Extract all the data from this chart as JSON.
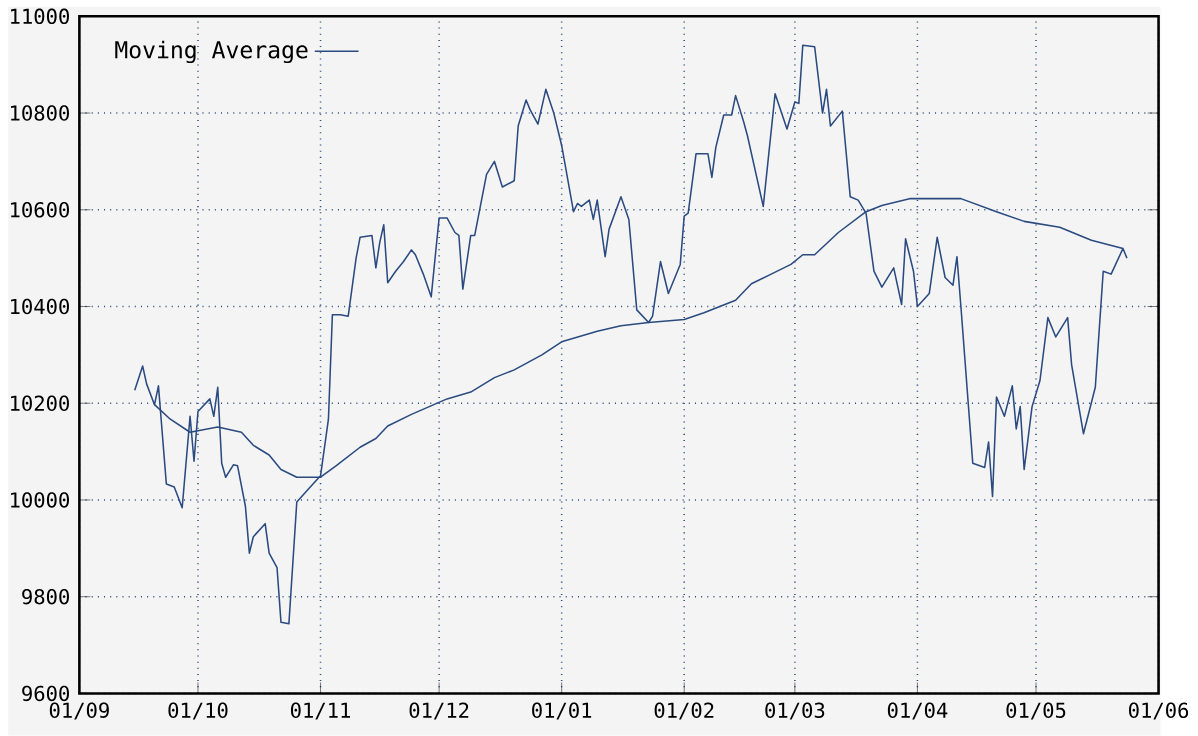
{
  "chart_data": {
    "type": "line",
    "xlim": [
      "2004-09-01",
      "2005-06-01"
    ],
    "xticks": [
      {
        "value": "2004-09-01",
        "label": "01/09"
      },
      {
        "value": "2004-10-01",
        "label": "01/10"
      },
      {
        "value": "2004-11-01",
        "label": "01/11"
      },
      {
        "value": "2004-12-01",
        "label": "01/12"
      },
      {
        "value": "2005-01-01",
        "label": "01/01"
      },
      {
        "value": "2005-02-01",
        "label": "01/02"
      },
      {
        "value": "2005-03-01",
        "label": "01/03"
      },
      {
        "value": "2005-04-01",
        "label": "01/04"
      },
      {
        "value": "2005-05-01",
        "label": "01/05"
      },
      {
        "value": "2005-06-01",
        "label": "01/06"
      }
    ],
    "ylim": [
      9600,
      11000
    ],
    "yticks": [
      9600,
      9800,
      10000,
      10200,
      10400,
      10600,
      10800,
      11000
    ],
    "grid": true,
    "legend": "top left",
    "marker": "none",
    "line_style": "solid",
    "series": [
      {
        "color": "#2a4a80",
        "x": [
          "2004-09-15",
          "2004-09-17",
          "2004-09-18",
          "2004-09-20",
          "2004-09-21",
          "2004-09-23",
          "2004-09-25",
          "2004-09-27",
          "2004-09-29",
          "2004-09-30",
          "2004-10-01",
          "2004-10-04",
          "2004-10-05",
          "2004-10-06",
          "2004-10-07",
          "2004-10-08",
          "2004-10-10",
          "2004-10-11",
          "2004-10-13",
          "2004-10-14",
          "2004-10-15",
          "2004-10-18",
          "2004-10-19",
          "2004-10-21",
          "2004-10-22",
          "2004-10-24",
          "2004-10-26",
          "2004-10-29",
          "2004-11-01",
          "2004-11-03",
          "2004-11-04",
          "2004-11-06",
          "2004-11-08",
          "2004-11-10",
          "2004-11-11",
          "2004-11-14",
          "2004-11-15",
          "2004-11-16",
          "2004-11-17",
          "2004-11-18",
          "2004-11-20",
          "2004-11-22",
          "2004-11-24",
          "2004-11-25",
          "2004-11-27",
          "2004-11-29",
          "2004-12-01",
          "2004-12-03",
          "2004-12-05",
          "2004-12-06",
          "2004-12-07",
          "2004-12-09",
          "2004-12-10",
          "2004-12-13",
          "2004-12-15",
          "2004-12-17",
          "2004-12-20",
          "2004-12-21",
          "2004-12-23",
          "2004-12-24",
          "2004-12-26",
          "2004-12-28",
          "2004-12-30",
          "2005-01-01",
          "2005-01-04",
          "2005-01-05",
          "2005-01-06",
          "2005-01-08",
          "2005-01-09",
          "2005-01-10",
          "2005-01-12",
          "2005-01-13",
          "2005-01-16",
          "2005-01-18",
          "2005-01-20",
          "2005-01-23",
          "2005-01-24",
          "2005-01-26",
          "2005-01-28",
          "2005-01-31",
          "2005-02-01",
          "2005-02-02",
          "2005-02-04",
          "2005-02-07",
          "2005-02-08",
          "2005-02-09",
          "2005-02-11",
          "2005-02-13",
          "2005-02-14",
          "2005-02-16",
          "2005-02-17",
          "2005-02-21",
          "2005-02-24",
          "2005-02-27",
          "2005-03-01",
          "2005-03-02",
          "2005-03-03",
          "2005-03-06",
          "2005-03-08",
          "2005-03-09",
          "2005-03-10",
          "2005-03-13",
          "2005-03-15",
          "2005-03-17",
          "2005-03-19",
          "2005-03-21",
          "2005-03-23",
          "2005-03-26",
          "2005-03-28",
          "2005-03-29",
          "2005-03-31",
          "2005-04-01",
          "2005-04-04",
          "2005-04-06",
          "2005-04-08",
          "2005-04-10",
          "2005-04-11",
          "2005-04-12",
          "2005-04-15",
          "2005-04-18",
          "2005-04-19",
          "2005-04-20",
          "2005-04-21",
          "2005-04-23",
          "2005-04-25",
          "2005-04-26",
          "2005-04-27",
          "2005-04-28",
          "2005-04-30",
          "2005-05-02",
          "2005-05-04",
          "2005-05-06",
          "2005-05-09",
          "2005-05-10",
          "2005-05-13",
          "2005-05-16",
          "2005-05-18",
          "2005-05-20",
          "2005-05-23",
          "2005-05-24"
        ],
        "values": [
          10227,
          10277,
          10240,
          10197,
          10236,
          10033,
          10027,
          9984,
          10173,
          10080,
          10183,
          10209,
          10173,
          10233,
          10076,
          10047,
          10073,
          10071,
          9987,
          9890,
          9924,
          9951,
          9890,
          9860,
          9747,
          9744,
          9996,
          10023,
          10050,
          10167,
          10383,
          10383,
          10380,
          10500,
          10543,
          10547,
          10480,
          10533,
          10569,
          10449,
          10473,
          10493,
          10517,
          10507,
          10467,
          10420,
          10583,
          10583,
          10553,
          10547,
          10436,
          10547,
          10547,
          10673,
          10700,
          10647,
          10660,
          10773,
          10827,
          10807,
          10777,
          10849,
          10800,
          10733,
          10596,
          10613,
          10607,
          10620,
          10580,
          10620,
          10503,
          10560,
          10627,
          10580,
          10393,
          10367,
          10380,
          10493,
          10427,
          10487,
          10587,
          10593,
          10716,
          10716,
          10667,
          10729,
          10796,
          10796,
          10836,
          10783,
          10753,
          10607,
          10840,
          10767,
          10823,
          10820,
          10940,
          10937,
          10800,
          10849,
          10773,
          10804,
          10627,
          10620,
          10593,
          10473,
          10440,
          10480,
          10404,
          10540,
          10473,
          10400,
          10427,
          10543,
          10460,
          10444,
          10503,
          10400,
          10076,
          10067,
          10120,
          10007,
          10213,
          10173,
          10236,
          10147,
          10193,
          10063,
          10193,
          10247,
          10377,
          10337,
          10377,
          10280,
          10137,
          10233,
          10473,
          10467,
          10520,
          10500
        ]
      },
      {
        "name": "Moving Average",
        "color": "#2a4a80",
        "x": [
          "2004-09-20",
          "2004-09-24",
          "2004-09-29",
          "2004-10-06",
          "2004-10-12",
          "2004-10-15",
          "2004-10-19",
          "2004-10-22",
          "2004-10-26",
          "2004-11-01",
          "2004-11-05",
          "2004-11-11",
          "2004-11-15",
          "2004-11-18",
          "2004-11-24",
          "2004-12-03",
          "2004-12-09",
          "2004-12-15",
          "2004-12-20",
          "2004-12-27",
          "2005-01-01",
          "2005-01-10",
          "2005-01-16",
          "2005-01-23",
          "2005-02-01",
          "2005-02-06",
          "2005-02-14",
          "2005-02-18",
          "2005-02-23",
          "2005-02-28",
          "2005-03-03",
          "2005-03-06",
          "2005-03-12",
          "2005-03-19",
          "2005-03-23",
          "2005-03-30",
          "2005-04-12",
          "2005-04-21",
          "2005-04-28",
          "2005-05-07",
          "2005-05-15",
          "2005-05-23"
        ],
        "values": [
          10197,
          10167,
          10140,
          10151,
          10140,
          10113,
          10093,
          10063,
          10047,
          10047,
          10071,
          10109,
          10127,
          10153,
          10177,
          10209,
          10223,
          10253,
          10269,
          10300,
          10327,
          10349,
          10360,
          10367,
          10373,
          10387,
          10413,
          10447,
          10467,
          10487,
          10507,
          10507,
          10553,
          10596,
          10609,
          10623,
          10623,
          10596,
          10576,
          10564,
          10537,
          10520
        ]
      }
    ]
  }
}
